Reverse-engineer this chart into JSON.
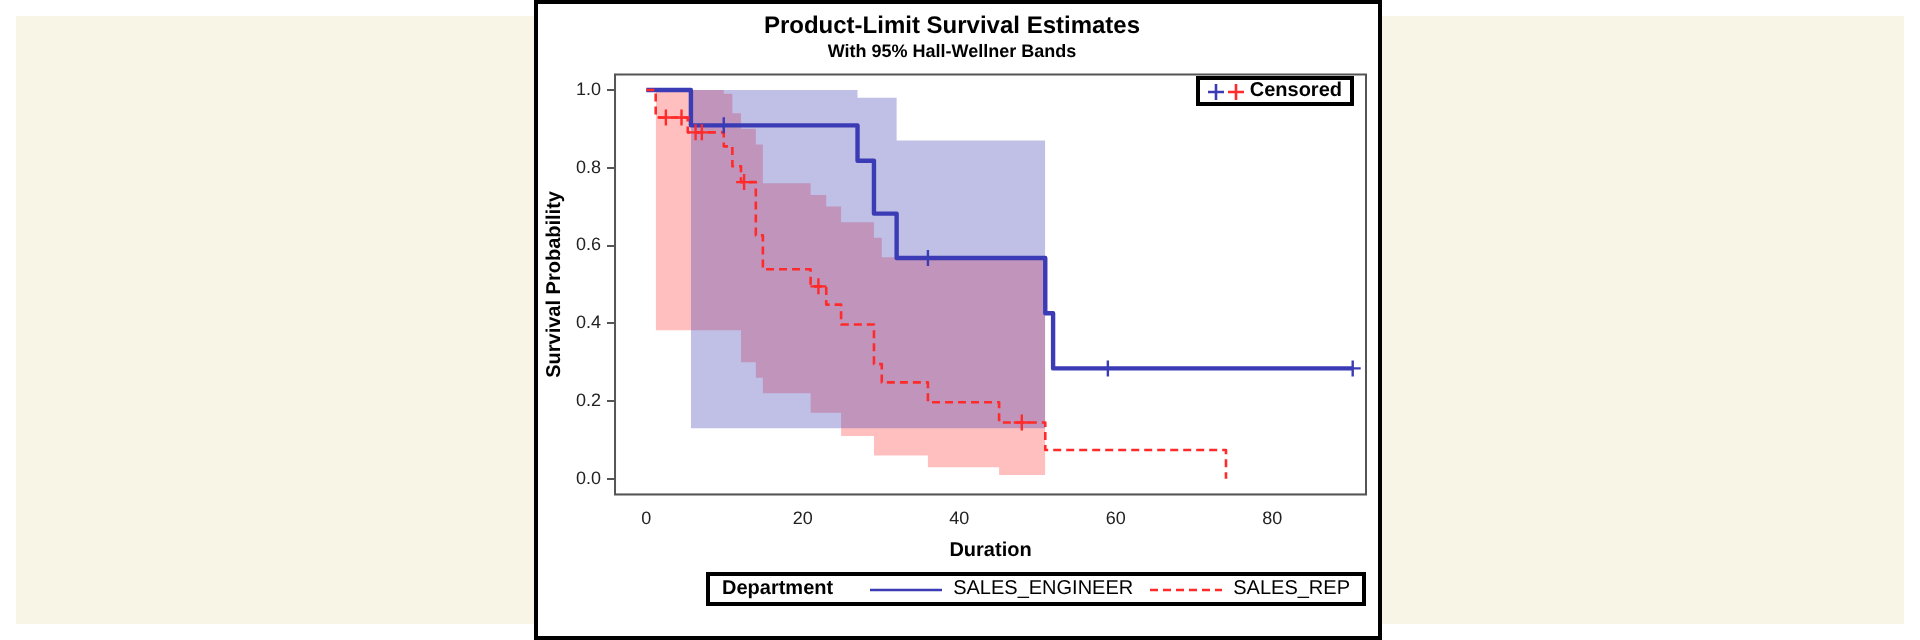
{
  "chart_data": {
    "type": "step",
    "title": "Product-Limit Survival Estimates",
    "subtitle": "With 95% Hall-Wellner Bands",
    "xlabel": "Duration",
    "ylabel": "Survival Probability",
    "legend_title": "Department",
    "legend": "bottom",
    "grid": false,
    "xlim": [
      -4,
      92
    ],
    "xticks": [
      0,
      20,
      40,
      60,
      80
    ],
    "ylim": [
      -0.04,
      1.04
    ],
    "yticks": [
      {
        "value": 0,
        "label": "0.0"
      },
      {
        "value": 0.2,
        "label": "0.2"
      },
      {
        "value": 0.4,
        "label": "0.4"
      },
      {
        "value": 0.6,
        "label": "0.6"
      },
      {
        "value": 0.8,
        "label": "0.8"
      },
      {
        "value": 1,
        "label": "1.0"
      }
    ],
    "series": [
      {
        "name": "SALES_ENGINEER",
        "color": "#3b3bb5",
        "line_style": "solid",
        "x": [
          0,
          5.7,
          27,
          29.1,
          32,
          51,
          52,
          90.3
        ],
        "values": [
          1.0,
          0.909,
          0.818,
          0.682,
          0.568,
          0.426,
          0.284,
          0.284
        ],
        "lower": [
          null,
          0.13,
          0.13,
          0.13,
          0.13,
          0.03,
          null,
          null
        ],
        "upper": [
          null,
          1.0,
          0.98,
          0.98,
          0.87,
          0.8,
          null,
          null
        ]
      },
      {
        "name": "SALES_REP",
        "color": "#ff2a2a",
        "line_style": "dashed",
        "x": [
          0,
          1.2,
          5.3,
          9.9,
          11.0,
          12.1,
          14.0,
          14.9,
          21.0,
          23.0,
          24.9,
          29.1,
          30.1,
          36.0,
          45.1,
          51.0,
          74.1
        ],
        "values": [
          1.0,
          0.929,
          0.891,
          0.855,
          0.804,
          0.763,
          0.626,
          0.539,
          0.495,
          0.448,
          0.397,
          0.295,
          0.248,
          0.197,
          0.145,
          0.074,
          0.0
        ],
        "lower": [
          null,
          0.382,
          0.382,
          0.382,
          0.382,
          0.3,
          0.26,
          0.22,
          0.17,
          0.17,
          0.11,
          0.06,
          0.06,
          0.03,
          0.01,
          0.01,
          null
        ],
        "upper": [
          null,
          1.0,
          1.0,
          0.99,
          0.94,
          0.9,
          0.86,
          0.76,
          0.73,
          0.7,
          0.66,
          0.62,
          0.57,
          0.57,
          0.57,
          0.555,
          null
        ]
      },
      {
        "name": "Censored",
        "type": "scatter",
        "marker": "cross",
        "x": [
          9.9,
          36,
          59,
          90.3,
          2.5,
          4.5,
          6.3,
          7.1,
          12.5,
          22,
          48
        ],
        "values": [
          0.909,
          0.568,
          0.284,
          0.284,
          0.929,
          0.929,
          0.891,
          0.891,
          0.763,
          0.495,
          0.145
        ],
        "colors": [
          "#3b3bb5",
          "#3b3bb5",
          "#3b3bb5",
          "#3b3bb5",
          "#ff2a2a",
          "#ff2a2a",
          "#ff2a2a",
          "#ff2a2a",
          "#ff2a2a",
          "#ff2a2a",
          "#ff2a2a"
        ]
      }
    ]
  }
}
